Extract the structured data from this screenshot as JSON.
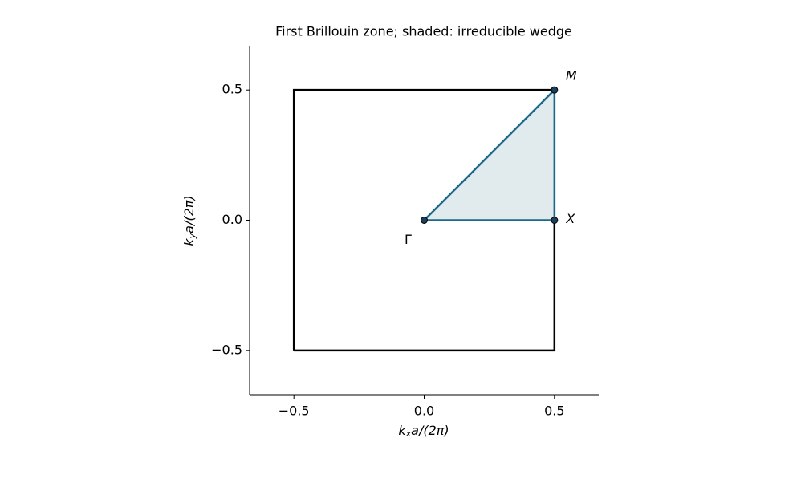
{
  "chart_data": {
    "type": "line",
    "title": "First Brillouin zone; shaded: irreducible wedge",
    "xlabel": {
      "base": "k",
      "sub": "x",
      "rest": "a/(2π)"
    },
    "ylabel": {
      "base": "k",
      "sub": "y",
      "rest": "a/(2π)"
    },
    "xlim": [
      -0.67,
      0.67
    ],
    "ylim": [
      -0.67,
      0.67
    ],
    "xticks": [
      {
        "value": -0.5,
        "label": "−0.5"
      },
      {
        "value": 0,
        "label": "0.0"
      },
      0.5
    ],
    "yticks": [
      {
        "value": -0.5,
        "label": "−0.5"
      },
      {
        "value": 0,
        "label": "0.0"
      },
      0.5
    ],
    "series": [
      {
        "color": "#000000",
        "x": [
          -0.5,
          0.5,
          0.5,
          -0.5,
          -0.5
        ],
        "values": [
          -0.5,
          -0.5,
          0.5,
          0.5,
          -0.5
        ]
      },
      {
        "color": "#1b6a8a",
        "fill": "#e1eaed",
        "x": [
          0,
          0.5,
          0.5,
          0
        ],
        "values": [
          0,
          0,
          0.5,
          0
        ]
      }
    ],
    "points": {
      "color": "#1b3f5c",
      "labels": [
        "Γ",
        "X",
        "M"
      ],
      "x": [
        0,
        0.5,
        0.5
      ],
      "values": [
        0,
        0,
        0.5
      ]
    }
  }
}
